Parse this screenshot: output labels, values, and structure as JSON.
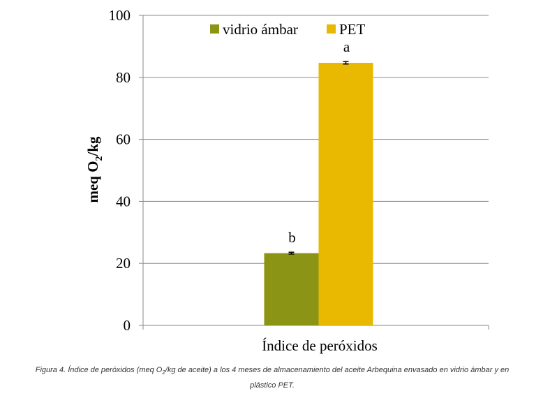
{
  "chart_data": {
    "type": "bar",
    "categories": [
      "Índice de peróxidos"
    ],
    "series": [
      {
        "name": "vidrio ámbar",
        "values": [
          23.3
        ],
        "error": [
          0.3
        ],
        "label": "b",
        "color": "#8b9414"
      },
      {
        "name": "PET",
        "values": [
          84.7
        ],
        "error": [
          0.4
        ],
        "label": "a",
        "color": "#e8b900"
      }
    ],
    "ylabel": {
      "main": "meq O",
      "sub": "2",
      "rest": "/kg"
    },
    "ylim": [
      0,
      100
    ],
    "yticks": [
      0,
      20,
      40,
      60,
      80,
      100
    ],
    "grid": true,
    "legend_position": "top"
  },
  "caption": {
    "prefix": "Figura 4. Índice de peróxidos (meq O",
    "sub": "2",
    "suffix": "/kg de aceite) a los 4 meses de almacenamiento del aceite Arbequina envasado en vidrio ámbar y en plástico PET."
  }
}
